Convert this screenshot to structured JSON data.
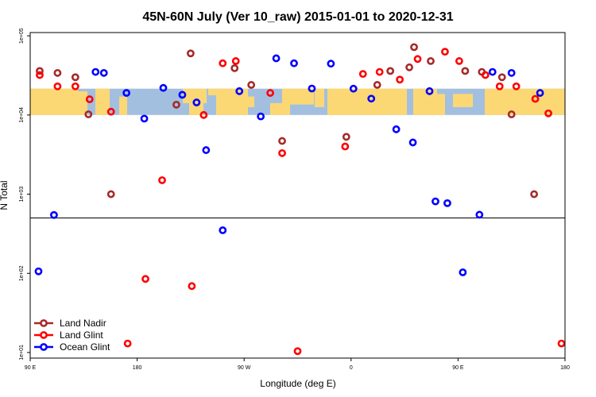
{
  "chart_data": {
    "type": "scatter",
    "title": "45N-60N July (Ver 10_raw)   2015-01-01 to 2020-12-31",
    "xlabel": "Longitude (deg E)",
    "ylabel": "N Total",
    "x_ticks": [
      {
        "value": 90,
        "label": "90 E"
      },
      {
        "value": 180,
        "label": "180"
      },
      {
        "value": 270,
        "label": "90 W"
      },
      {
        "value": 360,
        "label": "0"
      },
      {
        "value": 450,
        "label": "90 E"
      },
      {
        "value": 540,
        "label": "180"
      }
    ],
    "xlim": [
      90,
      540
    ],
    "y_scale": "log",
    "ylim": [
      8.5,
      110000
    ],
    "y_ticks": [
      {
        "value": 10,
        "label": "1e+01"
      },
      {
        "value": 100,
        "label": "1e+02"
      },
      {
        "value": 1000,
        "label": "1e+03"
      },
      {
        "value": 10000,
        "label": "1e+04"
      },
      {
        "value": 100000,
        "label": "1e+05"
      }
    ],
    "reference_line": 500,
    "band": {
      "y_low": 10000,
      "y_high": 21500
    },
    "legend": {
      "position": "bottom-left"
    },
    "series": [
      {
        "name": "Land Nadir",
        "color": "#a52a2a",
        "points": [
          [
            98,
            36000
          ],
          [
            113,
            34000
          ],
          [
            128,
            30000
          ],
          [
            139,
            10200
          ],
          [
            158,
            1000
          ],
          [
            213,
            13500
          ],
          [
            225,
            60000
          ],
          [
            262,
            39000
          ],
          [
            276,
            24000
          ],
          [
            302,
            4700
          ],
          [
            356,
            5300
          ],
          [
            382,
            24000
          ],
          [
            393,
            36000
          ],
          [
            409,
            40000
          ],
          [
            413,
            72000
          ],
          [
            427,
            48000
          ],
          [
            456,
            36000
          ],
          [
            470,
            35000
          ],
          [
            487,
            30000
          ],
          [
            495,
            10200
          ],
          [
            514,
            1000
          ]
        ]
      },
      {
        "name": "Land Glint",
        "color": "#ff0000",
        "points": [
          [
            98,
            32000
          ],
          [
            113,
            23000
          ],
          [
            128,
            23000
          ],
          [
            140,
            15800
          ],
          [
            158,
            11000
          ],
          [
            172,
            13
          ],
          [
            187,
            85
          ],
          [
            201,
            1500
          ],
          [
            226,
            69
          ],
          [
            236,
            10000
          ],
          [
            252,
            45000
          ],
          [
            263,
            48000
          ],
          [
            292,
            19000
          ],
          [
            302,
            3300
          ],
          [
            315,
            10.4
          ],
          [
            355,
            4000
          ],
          [
            370,
            33000
          ],
          [
            384,
            35000
          ],
          [
            401,
            28000
          ],
          [
            416,
            51000
          ],
          [
            439,
            63000
          ],
          [
            451,
            48000
          ],
          [
            473,
            32000
          ],
          [
            485,
            23000
          ],
          [
            499,
            23000
          ],
          [
            515,
            16000
          ],
          [
            526,
            10500
          ],
          [
            537,
            13
          ]
        ]
      },
      {
        "name": "Ocean Glint",
        "color": "#0000ff",
        "points": [
          [
            97,
            106
          ],
          [
            110,
            546
          ],
          [
            145,
            35000
          ],
          [
            152,
            34000
          ],
          [
            171,
            19000
          ],
          [
            186,
            9000
          ],
          [
            202,
            22000
          ],
          [
            218,
            18000
          ],
          [
            230,
            14400
          ],
          [
            238,
            3600
          ],
          [
            252,
            350
          ],
          [
            266,
            20000
          ],
          [
            284,
            9600
          ],
          [
            297,
            52000
          ],
          [
            312,
            45000
          ],
          [
            327,
            21600
          ],
          [
            343,
            44500
          ],
          [
            362,
            21500
          ],
          [
            377,
            16100
          ],
          [
            398,
            6600
          ],
          [
            412,
            4500
          ],
          [
            426,
            20000
          ],
          [
            431,
            810
          ],
          [
            441,
            770
          ],
          [
            454,
            103
          ],
          [
            468,
            550
          ],
          [
            479,
            35000
          ],
          [
            495,
            34000
          ],
          [
            519,
            19000
          ]
        ]
      }
    ]
  }
}
